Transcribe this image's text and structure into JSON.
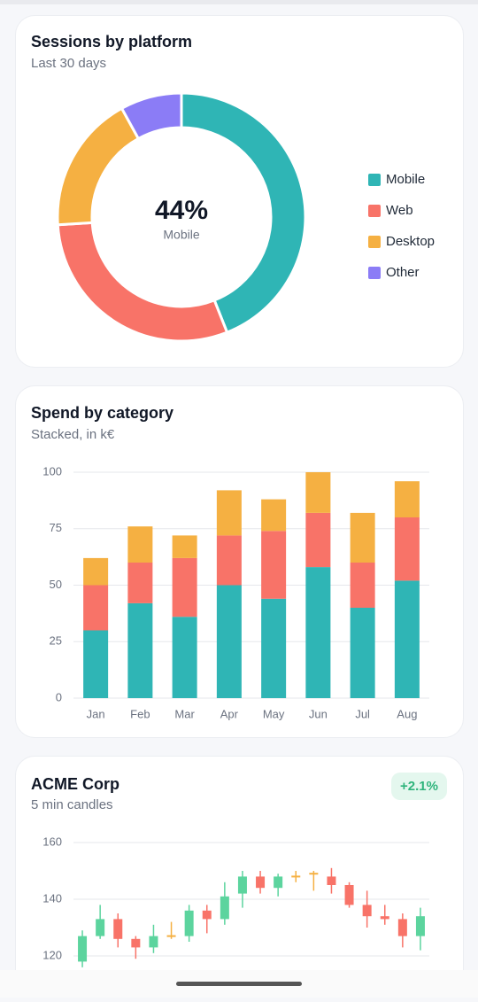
{
  "chart_data": [
    {
      "type": "donut",
      "title": "Sessions by platform",
      "subtitle": "Last 30 days",
      "categories": [
        "Mobile",
        "Web",
        "Desktop",
        "Other"
      ],
      "values": [
        44,
        30,
        18,
        8
      ],
      "colors": [
        "#2fb5b5",
        "#f87368",
        "#f5b042",
        "#8b7cf6"
      ],
      "center_label": "44%"
    },
    {
      "type": "stacked_bar",
      "title": "Spend by category",
      "subtitle": "Stacked, in k€",
      "categories": [
        "Jan",
        "Feb",
        "Mar",
        "Apr",
        "May",
        "Jun",
        "Jul",
        "Aug"
      ],
      "series": [
        {
          "color": "#2fb5b5",
          "values": [
            30,
            42,
            36,
            50,
            44,
            58,
            40,
            52
          ]
        },
        {
          "color": "#f87368",
          "values": [
            20,
            18,
            26,
            22,
            30,
            24,
            20,
            28
          ]
        },
        {
          "color": "#f5b042",
          "values": [
            12,
            16,
            10,
            20,
            14,
            18,
            22,
            16
          ]
        }
      ],
      "ylim": [
        0,
        100
      ],
      "yticks": [
        0,
        25,
        50,
        75,
        100
      ],
      "grid": true
    },
    {
      "type": "candlestick",
      "title": "ACME Corp",
      "subtitle": "5 min candles",
      "badge": "+2.1%",
      "open": [
        118,
        127,
        133,
        126,
        123,
        127,
        127,
        136,
        133,
        142,
        148,
        144,
        148,
        149,
        148,
        145,
        138,
        134,
        133,
        127
      ],
      "high": [
        129,
        138,
        135,
        127,
        131,
        132,
        138,
        138,
        146,
        150,
        150,
        149,
        150,
        150,
        151,
        146,
        143,
        138,
        135,
        137
      ],
      "low": [
        116,
        126,
        123,
        119,
        121,
        126,
        125,
        128,
        131,
        137,
        142,
        141,
        146,
        143,
        142,
        137,
        130,
        131,
        123,
        122
      ],
      "close": [
        127,
        133,
        126,
        123,
        127,
        127,
        136,
        133,
        141,
        148,
        144,
        148,
        148,
        149,
        145,
        138,
        134,
        133,
        127,
        134
      ],
      "up_color": "#5cd49e",
      "down_color": "#f87368",
      "flat_color": "#f5b042",
      "ylim": [
        115,
        163
      ],
      "yticks": [
        120,
        140,
        160
      ],
      "grid": true
    }
  ]
}
